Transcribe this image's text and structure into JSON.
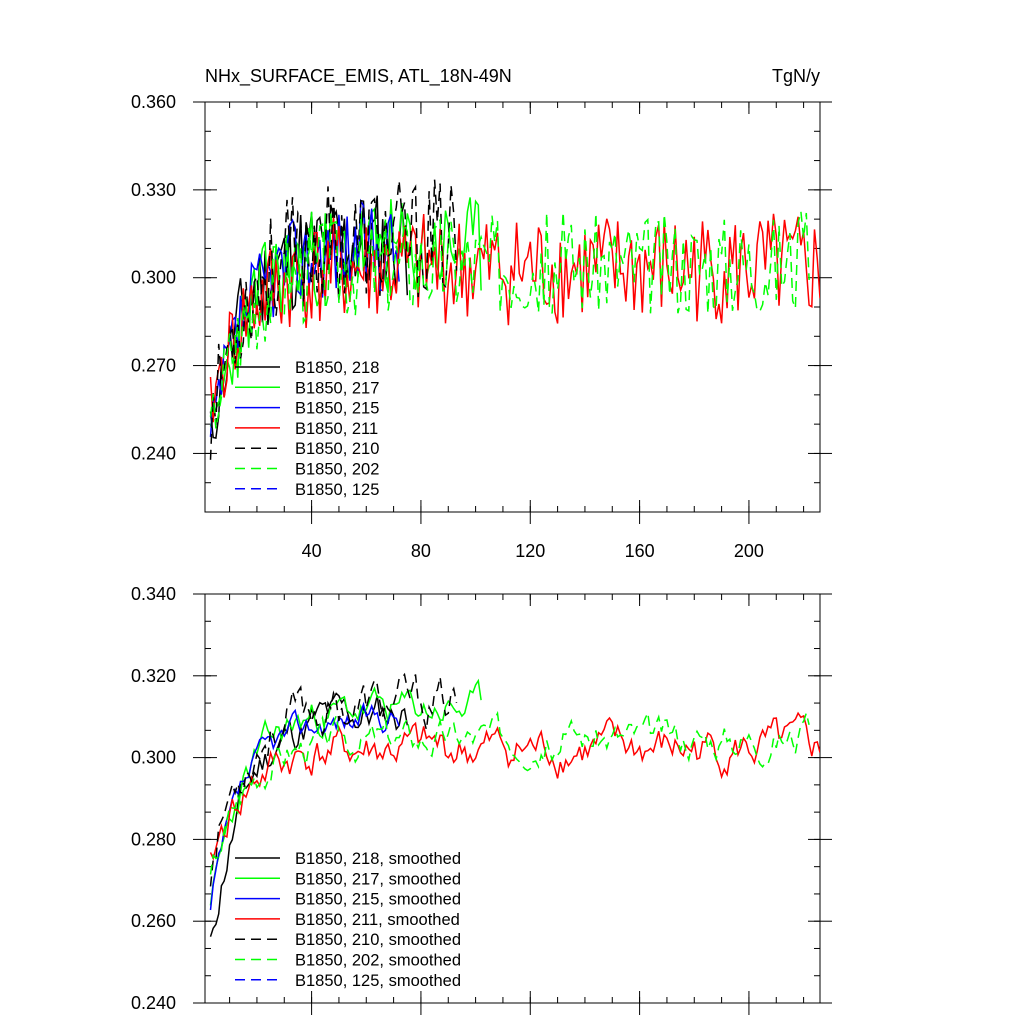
{
  "chart_data": [
    {
      "type": "line",
      "title": "NHx_SURFACE_EMIS, ATL_18N-49N",
      "units": "TgN/y",
      "xlim": [
        1,
        226
      ],
      "ylim": [
        0.22,
        0.36
      ],
      "xticks": [
        40,
        80,
        120,
        160,
        200
      ],
      "xtick_labels": [
        "40",
        "80",
        "120",
        "160",
        "200"
      ],
      "yticks": [
        0.24,
        0.27,
        0.3,
        0.33,
        0.36
      ],
      "ytick_labels": [
        "0.240",
        "0.270",
        "0.300",
        "0.330",
        "0.360"
      ],
      "legend_position": "bottom-left",
      "series": [
        {
          "name": "B1850, 218",
          "label": "B1850, 218",
          "color": "#000000",
          "dash": "solid",
          "x_end": 75,
          "start": 0.245,
          "plateau": 0.312,
          "amp": 0.012,
          "seed": 11
        },
        {
          "name": "B1850, 217",
          "label": "B1850, 217",
          "color": "#00ff00",
          "dash": "solid",
          "x_end": 102,
          "start": 0.24,
          "plateau": 0.31,
          "amp": 0.011,
          "seed": 23
        },
        {
          "name": "B1850, 215",
          "label": "B1850, 215",
          "color": "#0000ff",
          "dash": "solid",
          "x_end": 72,
          "start": 0.243,
          "plateau": 0.311,
          "amp": 0.01,
          "seed": 37
        },
        {
          "name": "B1850, 211",
          "label": "B1850, 211",
          "color": "#ff0000",
          "dash": "solid",
          "x_end": 226,
          "start": 0.255,
          "plateau": 0.303,
          "amp": 0.012,
          "seed": 41
        },
        {
          "name": "B1850, 210",
          "label": "B1850, 210",
          "color": "#000000",
          "dash": "dashed",
          "x_end": 93,
          "start": 0.25,
          "plateau": 0.313,
          "amp": 0.013,
          "seed": 53
        },
        {
          "name": "B1850, 202",
          "label": "B1850, 202",
          "color": "#00ff00",
          "dash": "dashed",
          "x_end": 222,
          "start": 0.248,
          "plateau": 0.305,
          "amp": 0.011,
          "seed": 67
        },
        {
          "name": "B1850, 125",
          "label": "B1850, 125",
          "color": "#0000ff",
          "dash": "dashed",
          "x_end": 0,
          "start": 0.25,
          "plateau": 0.3,
          "amp": 0.01,
          "seed": 71
        }
      ]
    },
    {
      "type": "line",
      "title": "",
      "units": "",
      "xlim": [
        1,
        226
      ],
      "ylim": [
        0.24,
        0.34
      ],
      "xticks": [
        40,
        80,
        120,
        160,
        200
      ],
      "xtick_labels": [],
      "yticks": [
        0.24,
        0.26,
        0.28,
        0.3,
        0.32,
        0.34
      ],
      "ytick_labels": [
        "0.240",
        "0.260",
        "0.280",
        "0.300",
        "0.320",
        "0.340"
      ],
      "legend_position": "bottom-left",
      "series": [
        {
          "name": "B1850, 218, smoothed",
          "label": "B1850, 218, smoothed",
          "color": "#000000",
          "dash": "solid",
          "x_end": 75,
          "start": 0.253,
          "plateau": 0.311,
          "amp": 0.006,
          "seed": 11
        },
        {
          "name": "B1850, 217, smoothed",
          "label": "B1850, 217, smoothed",
          "color": "#00ff00",
          "dash": "solid",
          "x_end": 102,
          "start": 0.261,
          "plateau": 0.312,
          "amp": 0.005,
          "seed": 23
        },
        {
          "name": "B1850, 215, smoothed",
          "label": "B1850, 215, smoothed",
          "color": "#0000ff",
          "dash": "solid",
          "x_end": 72,
          "start": 0.262,
          "plateau": 0.31,
          "amp": 0.004,
          "seed": 37
        },
        {
          "name": "B1850, 211, smoothed",
          "label": "B1850, 211, smoothed",
          "color": "#ff0000",
          "dash": "solid",
          "x_end": 226,
          "start": 0.273,
          "plateau": 0.302,
          "amp": 0.006,
          "seed": 41
        },
        {
          "name": "B1850, 210, smoothed",
          "label": "B1850, 210, smoothed",
          "color": "#000000",
          "dash": "dashed",
          "x_end": 93,
          "start": 0.273,
          "plateau": 0.313,
          "amp": 0.007,
          "seed": 53
        },
        {
          "name": "B1850, 202, smoothed",
          "label": "B1850, 202, smoothed",
          "color": "#00ff00",
          "dash": "dashed",
          "x_end": 222,
          "start": 0.27,
          "plateau": 0.305,
          "amp": 0.005,
          "seed": 67
        },
        {
          "name": "B1850, 125, smoothed",
          "label": "B1850, 125, smoothed",
          "color": "#0000ff",
          "dash": "dashed",
          "x_end": 0,
          "start": 0.27,
          "plateau": 0.3,
          "amp": 0.005,
          "seed": 71
        }
      ]
    }
  ]
}
